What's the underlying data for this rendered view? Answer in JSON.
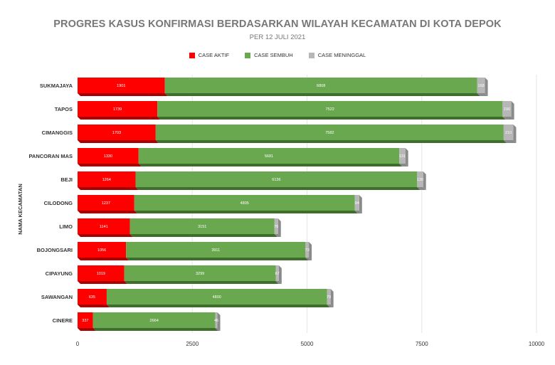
{
  "chart_data": {
    "type": "bar",
    "orientation": "horizontal",
    "stacked": true,
    "title": "PROGRES KASUS KONFIRMASI BERDASARKAN WILAYAH KECAMATAN DI KOTA DEPOK",
    "subtitle": "PER 12 JULI 2021",
    "ylabel": "NAMA KECAMATAN",
    "xlabel": "",
    "xlim": [
      0,
      10000
    ],
    "xticks": [
      "0",
      "2500",
      "5000",
      "7500",
      "10000"
    ],
    "grid": true,
    "legend_position": "top",
    "categories": [
      "SUKMAJAYA",
      "TAPOS",
      "CIMANGGIS",
      "PANCORAN MAS",
      "BEJI",
      "CILODONG",
      "LIMO",
      "BOJONGSARI",
      "CIPAYUNG",
      "SAWANGAN",
      "CINERE"
    ],
    "series": [
      {
        "name": "CASE AKTIF",
        "color": "#ff0000",
        "values": [
          1901,
          1739,
          1703,
          1330,
          1264,
          1237,
          1141,
          1056,
          1019,
          635,
          337
        ]
      },
      {
        "name": "CASE SEMBUH",
        "color": "#6aa84f",
        "values": [
          6808,
          7522,
          7582,
          5681,
          6136,
          4805,
          3151,
          3911,
          3299,
          4800,
          2664
        ]
      },
      {
        "name": "CASE MENINGGAL",
        "color": "#b7b7b7",
        "values": [
          168,
          190,
          210,
          131,
          130,
          94,
          76,
          73,
          67,
          79,
          46
        ]
      }
    ]
  }
}
